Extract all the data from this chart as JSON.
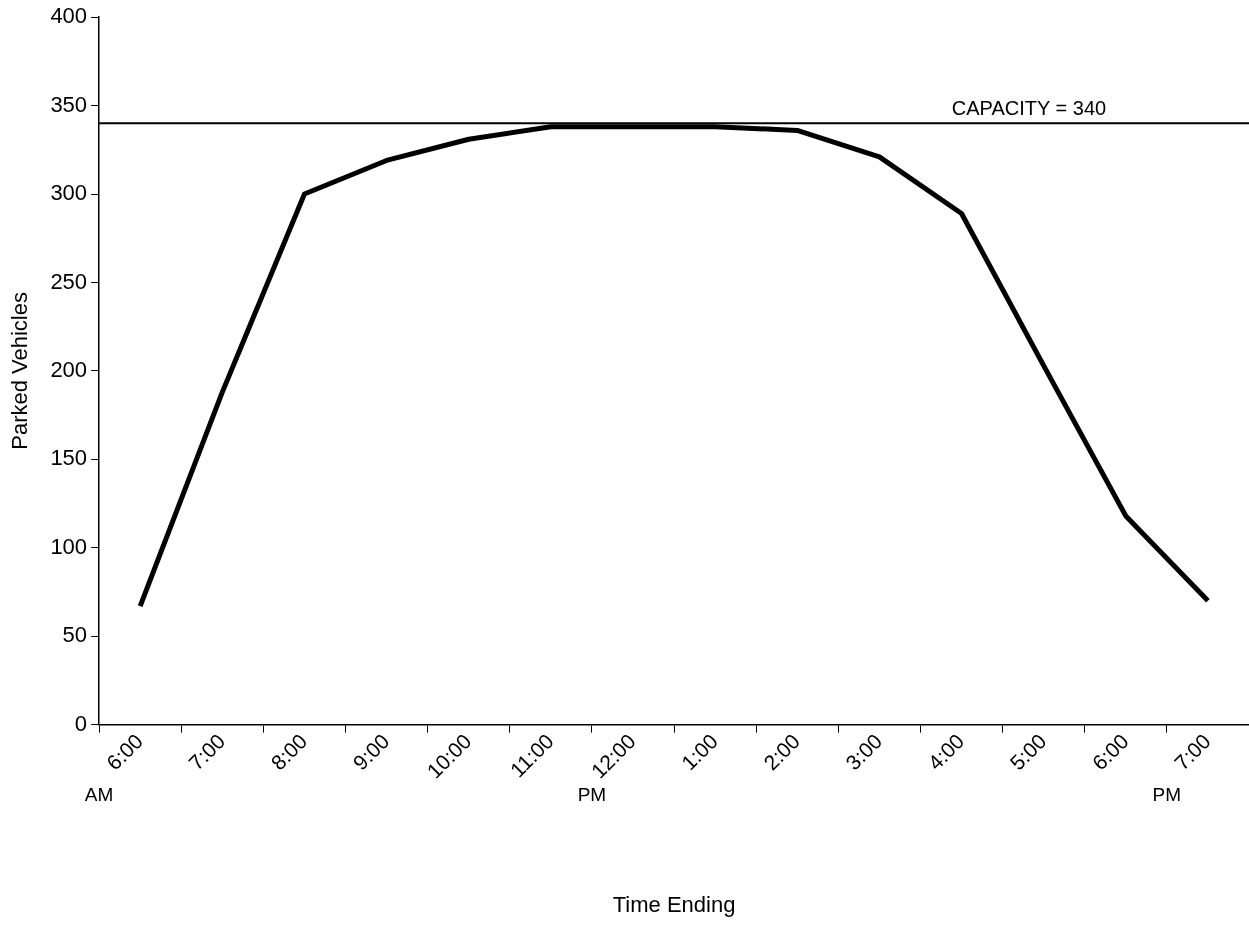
{
  "chart_data": {
    "type": "line",
    "xlabel": "Time Ending",
    "ylabel": "Parked Vehicles",
    "categories": [
      "6:00\nAM",
      "7:00",
      "8:00",
      "9:00",
      "10:00",
      "11:00",
      "12:00\nPM",
      "1:00",
      "2:00",
      "3:00",
      "4:00",
      "5:00",
      "6:00",
      "7:00\nPM"
    ],
    "series": [
      {
        "color": "#000000",
        "values": [
          67,
          188,
          300,
          319,
          331,
          338,
          338,
          338,
          336,
          321,
          289,
          203,
          118,
          70
        ]
      }
    ],
    "ylim": [
      0,
      400
    ],
    "yticks": [
      0,
      50,
      100,
      150,
      200,
      250,
      300,
      350,
      400
    ],
    "ref_lines": [
      {
        "axis": "y",
        "value": 340,
        "label": "CAPACITY = 340",
        "color": "#000000"
      }
    ],
    "grid": false,
    "legend": false,
    "marker": "none",
    "line_style": "solid"
  }
}
